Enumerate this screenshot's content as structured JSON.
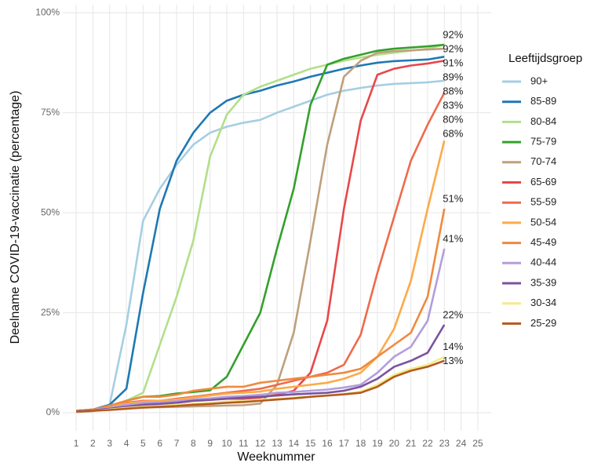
{
  "chart_data": {
    "type": "line",
    "xlabel": "Weeknummer",
    "ylabel": "Deelname COVID-19-vaccinatie (percentage)",
    "legend_title": "Leeftijdsgroep",
    "legend": "right",
    "grid": true,
    "x": [
      1,
      2,
      3,
      4,
      5,
      6,
      7,
      8,
      9,
      10,
      11,
      12,
      13,
      14,
      15,
      16,
      17,
      18,
      19,
      20,
      21,
      22,
      23
    ],
    "xlim": [
      0.2,
      25.8
    ],
    "xticks": [
      1,
      2,
      3,
      4,
      5,
      6,
      7,
      8,
      9,
      10,
      11,
      12,
      13,
      14,
      15,
      16,
      17,
      18,
      19,
      20,
      21,
      22,
      23,
      24,
      25
    ],
    "ylim": [
      -4.5,
      102
    ],
    "yticks": [
      {
        "value": 0,
        "label": "0%"
      },
      {
        "value": 25,
        "label": "25%"
      },
      {
        "value": 50,
        "label": "50%"
      },
      {
        "value": 75,
        "label": "75%"
      },
      {
        "value": 100,
        "label": "100%"
      }
    ],
    "series": [
      {
        "name": "90+",
        "color": "#a6cee3",
        "values": [
          0.5,
          0.8,
          2,
          22,
          48,
          56,
          62,
          67,
          70,
          71.5,
          72.5,
          73.2,
          75,
          76.5,
          78,
          79.5,
          80.5,
          81.2,
          81.8,
          82.2,
          82.4,
          82.6,
          83
        ],
        "value_labels": [
          null,
          null,
          null,
          null,
          null,
          null,
          null,
          null,
          null,
          null,
          null,
          null,
          null,
          null,
          null,
          null,
          null,
          null,
          null,
          null,
          null,
          null,
          "83%"
        ]
      },
      {
        "name": "85-89",
        "color": "#1f78b4",
        "values": [
          0.5,
          0.8,
          2,
          6,
          30,
          51,
          63,
          70,
          75,
          78,
          79.5,
          80.5,
          81.8,
          82.8,
          84,
          85,
          86,
          86.8,
          87.5,
          87.9,
          88.1,
          88.3,
          89
        ],
        "value_labels": [
          null,
          null,
          null,
          null,
          null,
          null,
          null,
          null,
          null,
          null,
          null,
          null,
          null,
          null,
          null,
          null,
          null,
          null,
          null,
          null,
          null,
          null,
          "89%"
        ]
      },
      {
        "name": "80-84",
        "color": "#b2df8a",
        "values": [
          0.5,
          0.8,
          1.5,
          3,
          5,
          17,
          29,
          43,
          64,
          74.5,
          79.5,
          81.5,
          83,
          84.5,
          86,
          87,
          88,
          88.8,
          89.5,
          90,
          90.5,
          91,
          92
        ],
        "value_labels": [
          null,
          null,
          null,
          null,
          null,
          null,
          null,
          null,
          null,
          null,
          null,
          null,
          null,
          null,
          null,
          null,
          null,
          null,
          null,
          null,
          null,
          null,
          "92%"
        ]
      },
      {
        "name": "75-79",
        "color": "#33a02c",
        "values": [
          0.5,
          0.8,
          1.5,
          3,
          4,
          4.2,
          4.8,
          5.2,
          5.6,
          9,
          17,
          25,
          41,
          56,
          77,
          87,
          88.5,
          89.5,
          90.5,
          91,
          91.3,
          91.6,
          92
        ],
        "value_labels": [
          null,
          null,
          null,
          null,
          null,
          null,
          null,
          null,
          null,
          null,
          null,
          null,
          null,
          null,
          null,
          null,
          null,
          null,
          null,
          null,
          null,
          null,
          "92%"
        ]
      },
      {
        "name": "70-74",
        "color": "#bf9f7c",
        "values": [
          0.2,
          0.4,
          1,
          1.2,
          1.3,
          1.4,
          1.5,
          1.6,
          1.7,
          1.8,
          1.9,
          2.3,
          7,
          20,
          43,
          67,
          84,
          88,
          90,
          90.4,
          90.6,
          90.8,
          91
        ],
        "value_labels": [
          null,
          null,
          null,
          null,
          null,
          null,
          null,
          null,
          null,
          null,
          null,
          null,
          null,
          null,
          null,
          null,
          null,
          null,
          null,
          null,
          null,
          null,
          "91%"
        ]
      },
      {
        "name": "65-69",
        "color": "#e8474a",
        "values": [
          0.3,
          0.5,
          1,
          1.5,
          2,
          2.2,
          2.5,
          3,
          3.3,
          3.5,
          3.5,
          3.8,
          4.5,
          5.5,
          10,
          23,
          51,
          73,
          84.5,
          86,
          86.8,
          87.3,
          88
        ],
        "value_labels": [
          null,
          null,
          null,
          null,
          null,
          null,
          null,
          null,
          null,
          null,
          null,
          null,
          null,
          null,
          null,
          null,
          null,
          null,
          null,
          null,
          null,
          null,
          "88%"
        ]
      },
      {
        "name": "55-59",
        "color": "#ef6a4c",
        "values": [
          0.5,
          0.8,
          1.5,
          2.5,
          3,
          3,
          3.5,
          4,
          4.5,
          5,
          5.5,
          6,
          7,
          8,
          9,
          10,
          12,
          19.5,
          35,
          49,
          63,
          72,
          80
        ],
        "value_labels": [
          null,
          null,
          null,
          null,
          null,
          null,
          null,
          null,
          null,
          null,
          null,
          null,
          null,
          null,
          null,
          null,
          null,
          null,
          null,
          null,
          null,
          null,
          "80%"
        ]
      },
      {
        "name": "50-54",
        "color": "#fcaa48",
        "values": [
          0.5,
          0.8,
          1.5,
          2.3,
          2.8,
          3,
          3.3,
          3.8,
          4.3,
          4.8,
          5,
          5.3,
          6,
          6.5,
          7,
          7.5,
          8.5,
          10,
          14,
          21,
          33,
          51,
          68
        ],
        "value_labels": [
          null,
          null,
          null,
          null,
          null,
          null,
          null,
          null,
          null,
          null,
          null,
          null,
          null,
          null,
          null,
          null,
          null,
          null,
          null,
          null,
          null,
          null,
          "68%"
        ]
      },
      {
        "name": "45-49",
        "color": "#ef8a3e",
        "values": [
          0.5,
          0.8,
          1.8,
          3,
          4,
          4,
          4.5,
          5.5,
          6,
          6.5,
          6.5,
          7.5,
          8,
          8.5,
          9,
          9.5,
          10,
          11,
          14,
          17,
          20,
          29,
          51
        ],
        "value_labels": [
          null,
          null,
          null,
          null,
          null,
          null,
          null,
          null,
          null,
          null,
          null,
          null,
          null,
          null,
          null,
          null,
          null,
          null,
          null,
          null,
          null,
          null,
          "51%"
        ]
      },
      {
        "name": "40-44",
        "color": "#b39ddb",
        "values": [
          0.5,
          0.7,
          1.2,
          2,
          2.4,
          2.6,
          2.9,
          3.3,
          3.6,
          4,
          4.2,
          4.5,
          5,
          5.2,
          5.5,
          5.8,
          6.3,
          7,
          10,
          14,
          16.5,
          23,
          41
        ],
        "value_labels": [
          null,
          null,
          null,
          null,
          null,
          null,
          null,
          null,
          null,
          null,
          null,
          null,
          null,
          null,
          null,
          null,
          null,
          null,
          null,
          null,
          null,
          null,
          "41%"
        ]
      },
      {
        "name": "35-39",
        "color": "#7b539e",
        "values": [
          0.4,
          0.6,
          1,
          1.5,
          2,
          2.2,
          2.5,
          3,
          3.2,
          3.5,
          3.8,
          4,
          4.3,
          4.6,
          4.8,
          5,
          5.5,
          6.5,
          8.5,
          11.5,
          13,
          15,
          22
        ],
        "value_labels": [
          null,
          null,
          null,
          null,
          null,
          null,
          null,
          null,
          null,
          null,
          null,
          null,
          null,
          null,
          null,
          null,
          null,
          null,
          null,
          null,
          null,
          null,
          "22%"
        ]
      },
      {
        "name": "30-34",
        "color": "#f5ec8e",
        "values": [
          0.3,
          0.5,
          0.8,
          1.2,
          1.5,
          1.7,
          2,
          2.3,
          2.5,
          2.8,
          3,
          3.2,
          3.5,
          3.8,
          4,
          4.3,
          4.7,
          5.3,
          7,
          9.5,
          11,
          12,
          14
        ],
        "value_labels": [
          null,
          null,
          null,
          null,
          null,
          null,
          null,
          null,
          null,
          null,
          null,
          null,
          null,
          null,
          null,
          null,
          null,
          null,
          null,
          null,
          null,
          null,
          "14%"
        ]
      },
      {
        "name": "25-29",
        "color": "#b35a1f",
        "values": [
          0.3,
          0.5,
          0.7,
          1,
          1.3,
          1.5,
          1.7,
          2,
          2.2,
          2.5,
          2.7,
          3,
          3.3,
          3.6,
          4,
          4.3,
          4.6,
          5,
          6.5,
          9,
          10.5,
          11.5,
          13
        ],
        "value_labels": [
          null,
          null,
          null,
          null,
          null,
          null,
          null,
          null,
          null,
          null,
          null,
          null,
          null,
          null,
          null,
          null,
          null,
          null,
          null,
          null,
          null,
          null,
          "13%"
        ]
      }
    ]
  }
}
